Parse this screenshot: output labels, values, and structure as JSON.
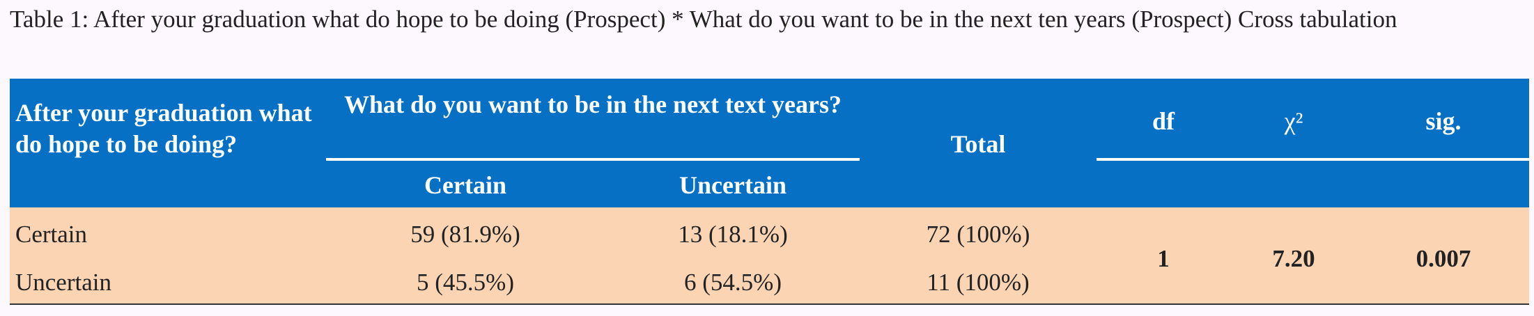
{
  "title": "Table 1: After your graduation what do hope to be doing (Prospect) * What do you want to be in the next ten years (Prospect) Cross tabulation",
  "table": {
    "headers": {
      "row_header": "After your graduation what do hope to be doing?",
      "group": "What do you want to be in the next text years?",
      "columns": [
        "Certain",
        "Uncertain"
      ],
      "total": "Total",
      "df": "df",
      "chi2": "χ²",
      "sig": "sig."
    },
    "rows": [
      [
        "Certain",
        "59 (81.9%)",
        "13 (18.1%)",
        "72 (100%)"
      ],
      [
        "Uncertain",
        "5 (45.5%)",
        "6 (54.5%)",
        "11 (100%)"
      ]
    ],
    "stats": {
      "df": "1",
      "chi2": "7.20",
      "sig": "0.007"
    }
  }
}
